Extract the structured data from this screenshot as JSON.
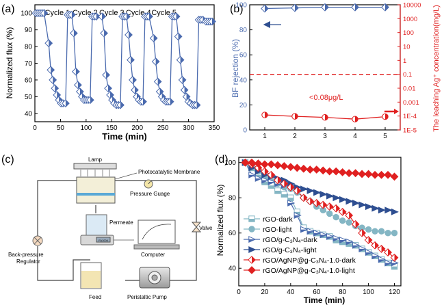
{
  "colors": {
    "blue": "#4a6aae",
    "lightblue": "#84b6c4",
    "darkblue": "#2f4f91",
    "red": "#e02020",
    "axis": "#000000"
  },
  "chart_data": [
    {
      "panel": "(a)",
      "type": "scatter",
      "xlabel": "Time (min)",
      "ylabel": "Normalized flux (%)",
      "xlim": [
        0,
        350
      ],
      "ylim": [
        35,
        105
      ],
      "xticks": [
        0,
        50,
        100,
        150,
        200,
        250,
        300,
        350
      ],
      "yticks": [
        40,
        50,
        60,
        70,
        80,
        90,
        100
      ],
      "annotations": [
        "Cycle 1",
        "Cycle 2",
        "Cycle 3",
        "Cycle 4",
        "Cycle 5"
      ],
      "series": [
        {
          "name": "Normalized flux",
          "x": [
            2,
            6,
            10,
            14,
            18,
            27,
            31,
            35,
            39,
            43,
            47,
            51,
            55,
            60,
            64,
            68,
            72,
            76,
            80,
            84,
            88,
            92,
            96,
            100,
            104,
            108,
            112,
            116,
            120,
            131,
            135,
            139,
            143,
            147,
            151,
            155,
            159,
            163,
            167,
            171,
            175,
            179,
            183,
            187,
            191,
            195,
            199,
            203,
            207,
            211,
            215,
            219,
            223,
            232,
            236,
            240,
            244,
            248,
            252,
            256,
            260,
            264,
            268,
            272,
            276,
            280,
            284,
            288,
            292,
            296,
            300,
            304,
            308,
            312,
            316,
            320,
            324,
            328,
            334,
            338,
            342,
            346
          ],
          "y": [
            100,
            100,
            100,
            100,
            100,
            82,
            66,
            60,
            55,
            51,
            48,
            46,
            46,
            46,
            99,
            99,
            99,
            88,
            65,
            57,
            53,
            50,
            48,
            48,
            48,
            48,
            98,
            98,
            98,
            98,
            88,
            63,
            55,
            51,
            48,
            46,
            45,
            45,
            45,
            98,
            98,
            98,
            87,
            72,
            60,
            54,
            50,
            48,
            47,
            47,
            98,
            98,
            98,
            85,
            71,
            59,
            53,
            50,
            48,
            47,
            47,
            47,
            98,
            98,
            98,
            86,
            72,
            60,
            54,
            50,
            47,
            46,
            45,
            45,
            45,
            96,
            96,
            96,
            95,
            95,
            95,
            95
          ]
        }
      ]
    },
    {
      "panel": "(b)",
      "type": "line",
      "xlabel": "",
      "ylabel": "BF rejection (%)",
      "ylabel_right": "The leaching Ag⁺ concentration(mg/L)",
      "x": [
        1,
        2,
        3,
        4,
        5
      ],
      "xlim": [
        0.5,
        5.5
      ],
      "ylim": [
        0,
        100
      ],
      "yticks": [
        0,
        20,
        40,
        60,
        80,
        100
      ],
      "yticks_right": [
        "1E-5",
        "1E-4",
        "0.001",
        "0.01",
        "0.1",
        "1",
        "10",
        "100",
        "1000",
        "10000"
      ],
      "annotation": "<0.08μg/L",
      "reference_line_right": 0.1,
      "series": [
        {
          "name": "BF rejection",
          "axis": "left",
          "values": [
            97,
            97.5,
            98,
            98,
            98
          ]
        },
        {
          "name": "Leaching Ag⁺",
          "axis": "right",
          "values": [
            0.00012,
            9.5e-05,
            8e-05,
            6e-05,
            9e-05
          ]
        }
      ]
    },
    {
      "panel": "(c)",
      "type": "diagram",
      "labels": {
        "lamp": "Lamp",
        "membrane": "Photocatalytic Membrane",
        "gauge": "Pressure Guage",
        "permeate": "Permeate",
        "regulator_1": "Back-pressure",
        "regulator_2": "Regulator",
        "valve": "Valve",
        "computer": "Computer",
        "feed": "Feed",
        "pump": "Peristaltic Pump",
        "balance": "FA1004"
      }
    },
    {
      "panel": "(d)",
      "type": "line",
      "xlabel": "Time (min)",
      "ylabel": "Normalized flux (%)",
      "xlim": [
        0,
        125
      ],
      "ylim": [
        30,
        103
      ],
      "xticks": [
        0,
        20,
        40,
        60,
        80,
        100,
        120
      ],
      "yticks": [
        40,
        60,
        80,
        100
      ],
      "x": [
        5,
        10,
        15,
        20,
        25,
        30,
        35,
        40,
        45,
        50,
        55,
        60,
        65,
        70,
        75,
        80,
        85,
        90,
        95,
        100,
        105,
        110,
        115,
        120
      ],
      "series": [
        {
          "name": "rGO-dark",
          "label_text": "rGO-dark",
          "color": "#84b6c4",
          "marker": "halfsquare",
          "values": [
            100,
            97,
            93,
            89,
            87,
            84,
            82,
            80,
            72,
            63,
            61,
            60,
            59,
            58,
            56,
            55,
            54,
            53,
            51,
            49,
            47,
            45,
            43,
            41
          ]
        },
        {
          "name": "rGO-light",
          "label_text": "rGO-light",
          "color": "#84b6c4",
          "marker": "circle",
          "values": [
            100,
            97,
            95,
            92,
            90,
            88,
            86,
            85,
            83,
            80,
            78,
            75,
            73,
            71,
            69,
            67,
            66,
            64,
            63,
            62,
            61,
            61,
            60,
            60
          ]
        },
        {
          "name": "rGO/g-C3N4-dark",
          "label_text": "rGO/g-C₃N₄-dark",
          "color": "#4a6aae",
          "marker": "halftriangle",
          "values": [
            100,
            93,
            91,
            90,
            89,
            88,
            87,
            77,
            70,
            62,
            61,
            60,
            59,
            58,
            57,
            56,
            55,
            53,
            51,
            49,
            47,
            45,
            43,
            43
          ]
        },
        {
          "name": "rGO/g-C3N4-light",
          "label_text": "rGO/g-C₃N₄-light",
          "color": "#2f4f91",
          "marker": "triangle",
          "values": [
            100,
            97,
            95,
            93,
            92,
            91,
            90,
            88,
            86,
            85,
            84,
            83,
            82,
            81,
            80,
            79,
            78,
            77,
            76,
            75,
            74,
            73,
            73,
            72
          ]
        },
        {
          "name": "rGO/AgNP@g-C3N4-1.0-dark",
          "label_text": "rGO/AgNP@g-C₃N₄-1.0-dark",
          "color": "#e02020",
          "marker": "halfdiamond",
          "values": [
            100,
            99,
            97,
            95,
            93,
            90,
            88,
            86,
            84,
            80,
            78,
            77,
            76,
            75,
            74,
            72,
            70,
            65,
            60,
            56,
            53,
            51,
            49,
            46
          ]
        },
        {
          "name": "rGO/AgNP@g-C3N4-1.0-light",
          "label_text": "rGO/AgNP@g-C₃N₄-1.0-light",
          "color": "#e02020",
          "marker": "diamond",
          "values": [
            100,
            100,
            99.5,
            99,
            99,
            98.5,
            98,
            97.5,
            97,
            96.5,
            96,
            96,
            95.5,
            95,
            95,
            94.5,
            94,
            94,
            93.5,
            93.5,
            93,
            93,
            93,
            92
          ]
        }
      ]
    }
  ]
}
